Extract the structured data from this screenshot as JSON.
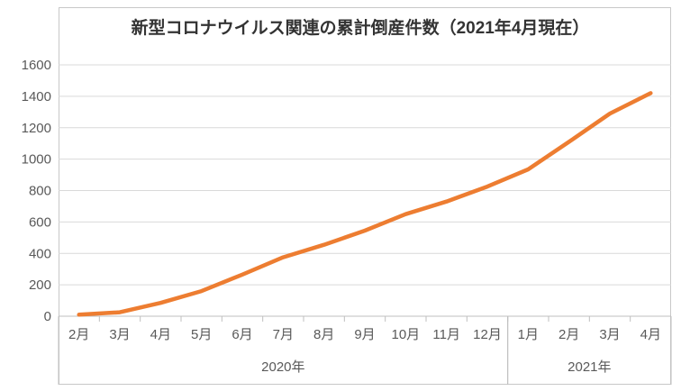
{
  "chart_data": {
    "type": "line",
    "title": "新型コロナウイルス関連の累計倒産件数（2021年4月現在）",
    "categories": [
      "2月",
      "3月",
      "4月",
      "5月",
      "6月",
      "7月",
      "8月",
      "9月",
      "10月",
      "11月",
      "12月",
      "1月",
      "2月",
      "3月",
      "4月"
    ],
    "values": [
      10,
      25,
      85,
      160,
      265,
      375,
      455,
      545,
      650,
      730,
      825,
      935,
      1110,
      1290,
      1420
    ],
    "series_name": "累計倒産件数",
    "year_groups": [
      {
        "label": "2020年",
        "start": 0,
        "count": 11
      },
      {
        "label": "2021年",
        "start": 11,
        "count": 4
      }
    ],
    "ylim": [
      0,
      1600
    ],
    "ytick_step": 200,
    "ytick_labels": [
      "0",
      "200",
      "400",
      "600",
      "800",
      "1000",
      "1200",
      "1400",
      "1600"
    ],
    "grid": "horizontal",
    "legend": "none",
    "line_color": "#ED7D31",
    "gridline_color": "#D9D9D9",
    "axis_color": "#BFBFBF",
    "label_color": "#595959",
    "border_color": "#C8C8C8",
    "title_color": "#333333"
  }
}
